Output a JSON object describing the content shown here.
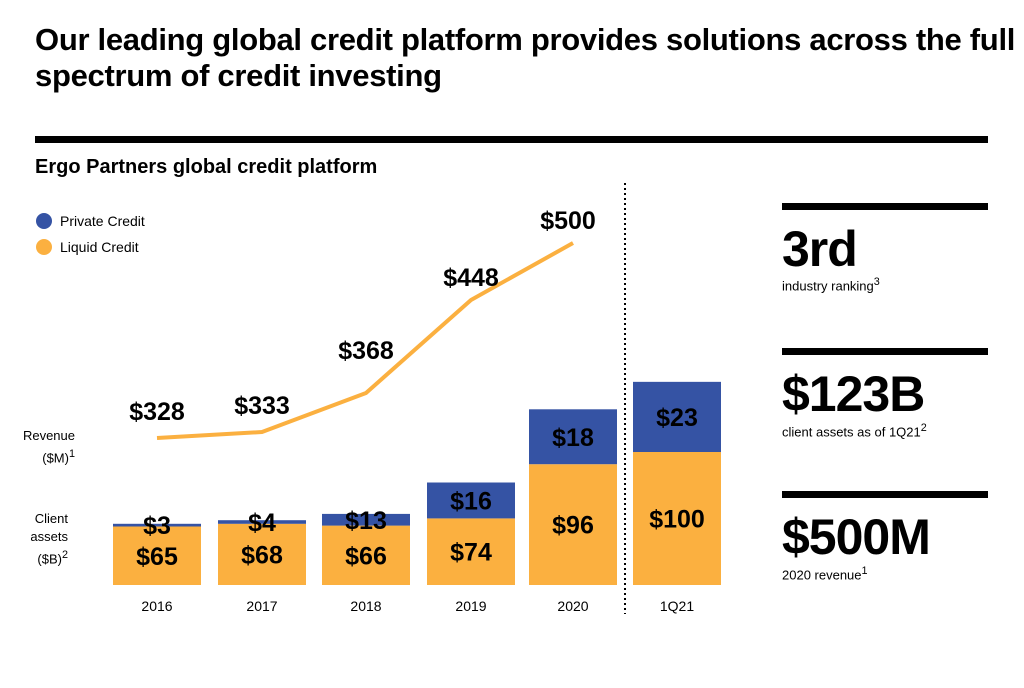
{
  "title": "Our leading global credit platform provides solutions across the full spectrum of credit investing",
  "subtitle": "Ergo Partners global credit platform",
  "side_labels": {
    "revenue": "Revenue ($M)",
    "revenue_note": "1",
    "assets": "Client assets ($B)",
    "assets_note": "2"
  },
  "kpis": [
    {
      "value": "3rd",
      "label": "industry ranking",
      "note": "3"
    },
    {
      "value": "$123B",
      "label": "client assets as of 1Q21",
      "note": "2"
    },
    {
      "value": "$500M",
      "label": "2020 revenue",
      "note": "1"
    }
  ],
  "colors": {
    "private": "#3553a4",
    "liquid": "#fbb040",
    "line": "#fbb040"
  },
  "chart_data": {
    "type": "bar",
    "title": "Ergo Partners global credit platform",
    "categories": [
      "2016",
      "2017",
      "2018",
      "2019",
      "2020",
      "1Q21"
    ],
    "series": [
      {
        "name": "Liquid Credit",
        "values": [
          65,
          68,
          66,
          74,
          96,
          100
        ],
        "labels": [
          "$65",
          "$68",
          "$66",
          "$74",
          "$96",
          "$100"
        ]
      },
      {
        "name": "Private Credit",
        "values": [
          3,
          4,
          13,
          16,
          18,
          23
        ],
        "labels": [
          "$3",
          "$4",
          "$13",
          "$16",
          "$18",
          "$23"
        ]
      }
    ],
    "line": {
      "name": "Revenue ($M)",
      "values": [
        328,
        333,
        368,
        448,
        500
      ],
      "labels": [
        "$328",
        "$333",
        "$368",
        "$448",
        "$500"
      ]
    },
    "legend": [
      "Private Credit",
      "Liquid Credit"
    ],
    "legend_position": "top-left",
    "stacked": true
  }
}
